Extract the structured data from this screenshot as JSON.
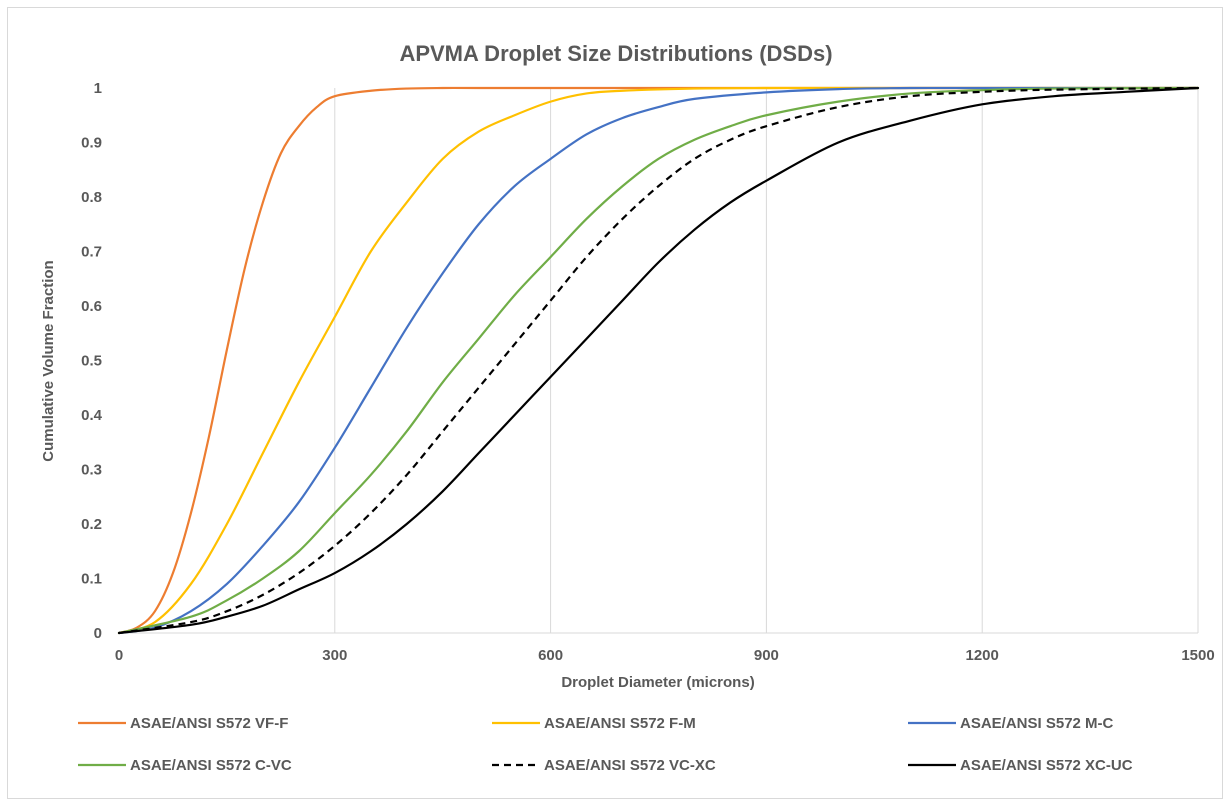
{
  "chart_data": {
    "type": "line",
    "title": "APVMA Droplet Size Distributions (DSDs)",
    "xlabel": "Droplet Diameter (microns)",
    "ylabel": "Cumulative Volume Fraction",
    "xlim": [
      0,
      1500
    ],
    "ylim": [
      0,
      1
    ],
    "xticks": [
      "0",
      "300",
      "600",
      "900",
      "1200",
      "1500"
    ],
    "yticks": [
      "0",
      "0.1",
      "0.2",
      "0.3",
      "0.4",
      "0.5",
      "0.6",
      "0.7",
      "0.8",
      "0.9",
      "1"
    ],
    "grid": "vertical",
    "legend_position": "bottom",
    "series": [
      {
        "name": "ASAE/ANSI S572 VF-F",
        "color": "#ED7D31",
        "dash": "solid",
        "x": [
          0,
          25,
          50,
          75,
          100,
          125,
          150,
          175,
          200,
          225,
          250,
          275,
          300,
          350,
          400,
          450,
          500,
          600,
          800,
          1000,
          1200,
          1500
        ],
        "y": [
          0,
          0.01,
          0.04,
          0.11,
          0.22,
          0.36,
          0.52,
          0.67,
          0.79,
          0.88,
          0.93,
          0.965,
          0.985,
          0.995,
          0.999,
          1,
          1,
          1,
          1,
          1,
          1,
          1
        ]
      },
      {
        "name": "ASAE/ANSI S572 F-M",
        "color": "#FFC000",
        "dash": "solid",
        "x": [
          0,
          50,
          100,
          150,
          200,
          250,
          300,
          350,
          400,
          450,
          500,
          550,
          600,
          650,
          700,
          800,
          900,
          1000,
          1200,
          1500
        ],
        "y": [
          0,
          0.02,
          0.09,
          0.2,
          0.33,
          0.46,
          0.58,
          0.7,
          0.79,
          0.87,
          0.92,
          0.95,
          0.975,
          0.99,
          0.995,
          0.999,
          1,
          1,
          1,
          1
        ]
      },
      {
        "name": "ASAE/ANSI S572 M-C",
        "color": "#4472C4",
        "dash": "solid",
        "x": [
          0,
          50,
          100,
          150,
          200,
          250,
          300,
          350,
          400,
          450,
          500,
          550,
          600,
          650,
          700,
          750,
          800,
          900,
          1000,
          1100,
          1200,
          1500
        ],
        "y": [
          0,
          0.01,
          0.04,
          0.09,
          0.16,
          0.24,
          0.34,
          0.45,
          0.56,
          0.66,
          0.75,
          0.82,
          0.87,
          0.915,
          0.945,
          0.965,
          0.98,
          0.992,
          0.998,
          1,
          1,
          1
        ]
      },
      {
        "name": "ASAE/ANSI S572 C-VC",
        "color": "#70AD47",
        "dash": "solid",
        "x": [
          0,
          100,
          150,
          200,
          250,
          300,
          350,
          400,
          450,
          500,
          550,
          600,
          650,
          700,
          750,
          800,
          850,
          900,
          1000,
          1100,
          1200,
          1300,
          1500
        ],
        "y": [
          0,
          0.03,
          0.06,
          0.1,
          0.15,
          0.22,
          0.29,
          0.37,
          0.46,
          0.54,
          0.62,
          0.69,
          0.76,
          0.82,
          0.87,
          0.905,
          0.93,
          0.95,
          0.975,
          0.99,
          0.996,
          0.999,
          1
        ]
      },
      {
        "name": "ASAE/ANSI S572 VC-XC",
        "color": "#000000",
        "dash": "dashed",
        "x": [
          0,
          100,
          150,
          200,
          250,
          300,
          350,
          400,
          450,
          500,
          550,
          600,
          650,
          700,
          750,
          800,
          850,
          900,
          1000,
          1100,
          1200,
          1300,
          1500
        ],
        "y": [
          0,
          0.02,
          0.04,
          0.07,
          0.11,
          0.16,
          0.22,
          0.29,
          0.37,
          0.45,
          0.53,
          0.61,
          0.69,
          0.76,
          0.82,
          0.87,
          0.905,
          0.93,
          0.965,
          0.985,
          0.993,
          0.997,
          1
        ]
      },
      {
        "name": "ASAE/ANSI S572 XC-UC",
        "color": "#000000",
        "dash": "solid",
        "x": [
          0,
          100,
          150,
          200,
          250,
          300,
          350,
          400,
          450,
          500,
          550,
          600,
          650,
          700,
          750,
          800,
          850,
          900,
          1000,
          1100,
          1200,
          1300,
          1400,
          1500
        ],
        "y": [
          0,
          0.015,
          0.03,
          0.05,
          0.08,
          0.11,
          0.15,
          0.2,
          0.26,
          0.33,
          0.4,
          0.47,
          0.54,
          0.61,
          0.68,
          0.74,
          0.79,
          0.83,
          0.9,
          0.94,
          0.97,
          0.985,
          0.993,
          1
        ]
      }
    ]
  }
}
